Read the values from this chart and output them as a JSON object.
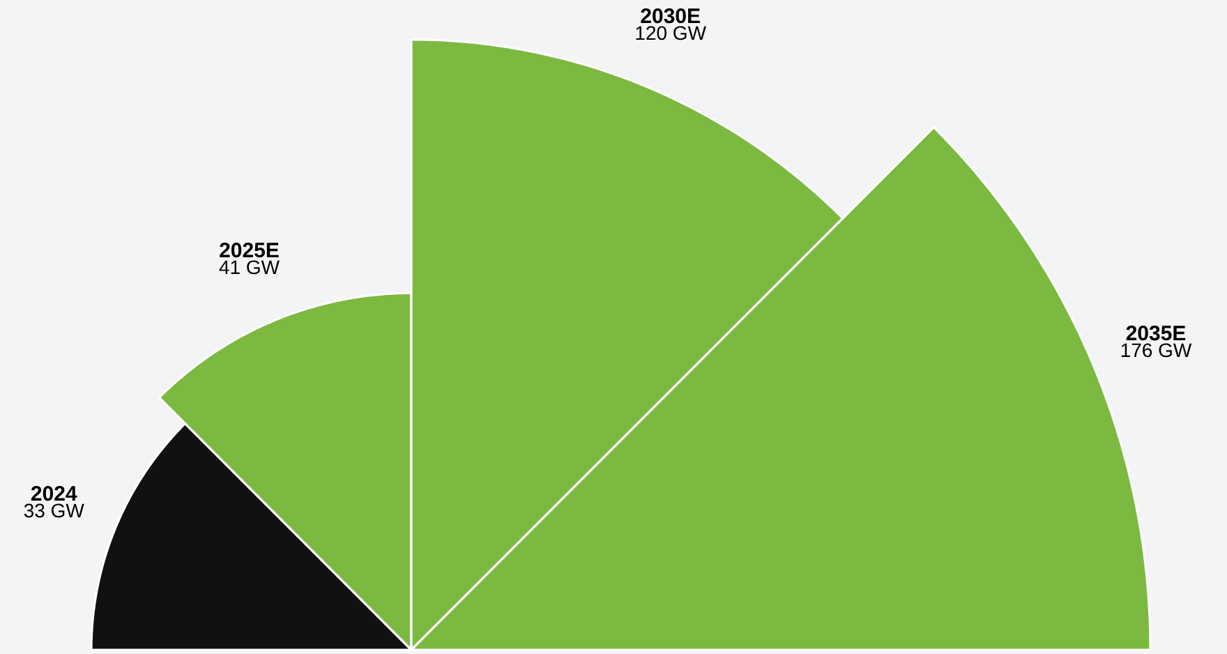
{
  "chart_data": {
    "type": "other",
    "categories": [
      "2024",
      "2025E",
      "2030E",
      "2035E"
    ],
    "values": [
      33,
      41,
      120,
      176
    ],
    "value_labels": [
      "33 GW",
      "41 GW",
      "120 GW",
      "176 GW"
    ],
    "colors": [
      "#111111",
      "#7cb940",
      "#7cb940",
      "#7cb940"
    ]
  }
}
